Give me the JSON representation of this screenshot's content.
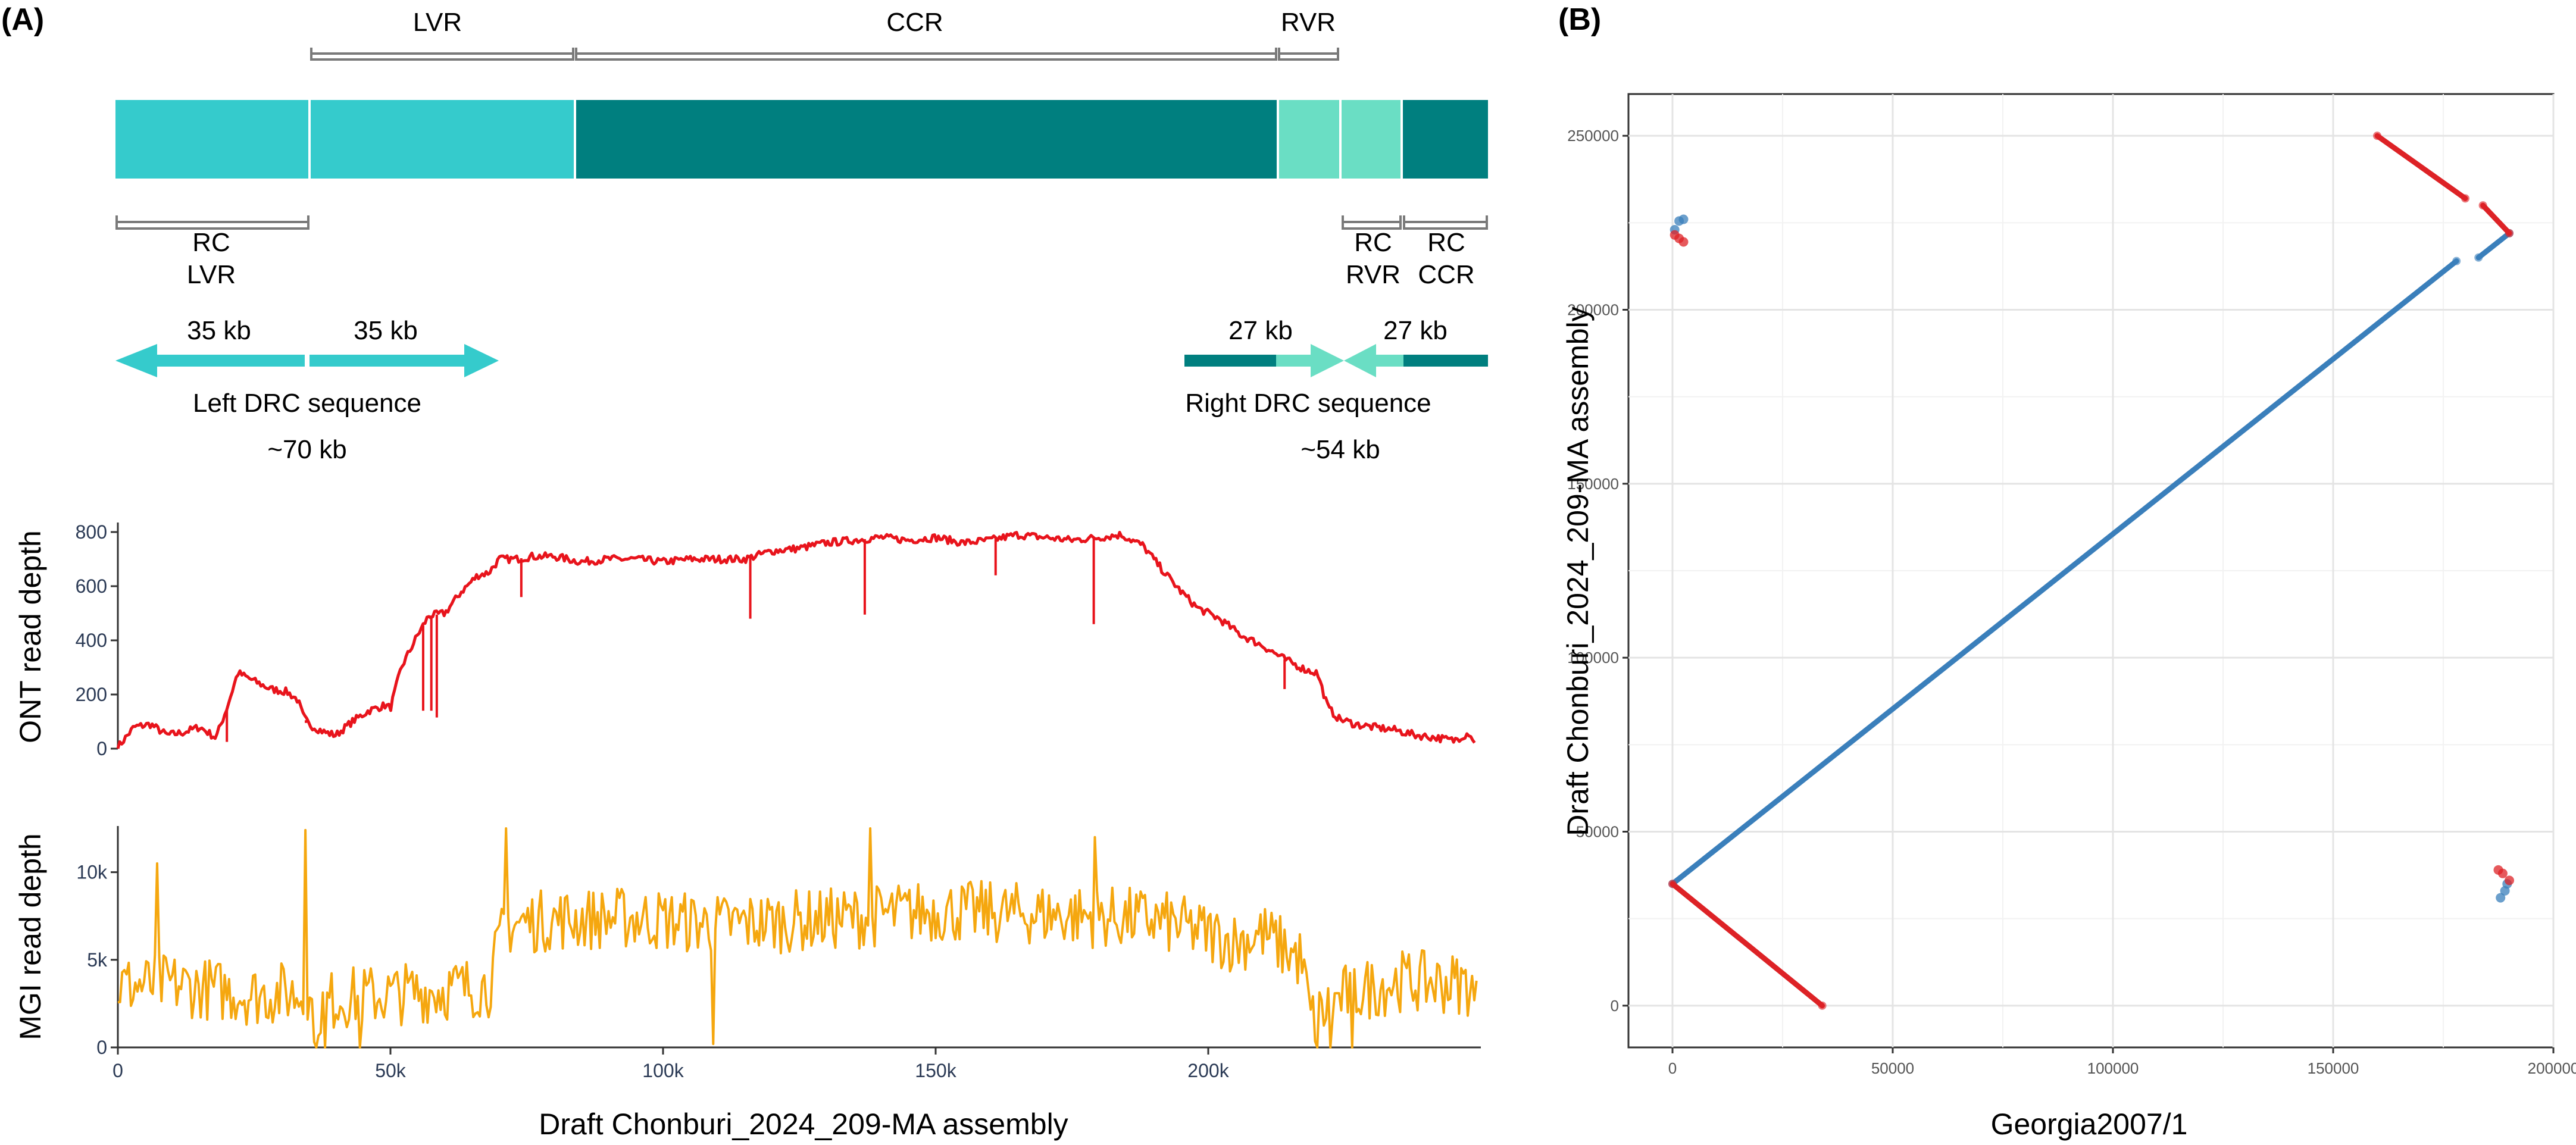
{
  "panels": {
    "a": "(A)",
    "b": "(B)"
  },
  "colors": {
    "light": "#35cbcc",
    "dark": "#007f7f",
    "mint": "#6adec4",
    "ont": "#e8141c",
    "mgi": "#f5a70f",
    "dotBlue": "#3a7fbb",
    "dotRed": "#dd2226"
  },
  "region_map": {
    "top_labels": {
      "lvr": "LVR",
      "ccr": "CCR",
      "rvr": "RVR"
    },
    "bottom_labels": {
      "rc_lvr": [
        "RC",
        "LVR"
      ],
      "rc_rvr": [
        "RC",
        "RVR"
      ],
      "rc_ccr": [
        "RC",
        "CCR"
      ]
    }
  },
  "drc": {
    "left": {
      "arrow_a": "35 kb",
      "arrow_b": "35 kb",
      "name": "Left DRC sequence",
      "size": "~70 kb"
    },
    "right": {
      "arrow_a": "27 kb",
      "arrow_b": "27 kb",
      "name": "Right DRC sequence",
      "size": "~54 kb"
    }
  },
  "chart_data": [
    {
      "type": "line",
      "title": "",
      "ylabel": "ONT read depth",
      "xlabel": "Draft Chonburi_2024_209-MA assembly",
      "xlim": [
        0,
        250000
      ],
      "ylim": [
        0,
        800
      ],
      "x_ticks": [
        0,
        50000,
        100000,
        150000,
        200000
      ],
      "x_tick_labels": [
        "0",
        "50k",
        "100k",
        "150k",
        "200k"
      ],
      "y_ticks": [
        0,
        200,
        400,
        600,
        800
      ],
      "y_tick_labels": [
        "0",
        "200",
        "400",
        "600",
        "800"
      ],
      "series": [
        {
          "name": "ONT",
          "x": [
            0,
            3000,
            6000,
            9000,
            12000,
            15000,
            18000,
            20000,
            22000,
            25000,
            28000,
            31000,
            33000,
            34000,
            35000,
            38000,
            40000,
            43000,
            46000,
            49000,
            50000,
            52000,
            55000,
            57000,
            60000,
            63000,
            66000,
            68000,
            70000,
            73000,
            76000,
            80000,
            85000,
            90000,
            95000,
            100000,
            105000,
            110000,
            115000,
            120000,
            125000,
            130000,
            135000,
            140000,
            145000,
            150000,
            155000,
            160000,
            165000,
            170000,
            175000,
            180000,
            184000,
            188000,
            192000,
            195000,
            198000,
            202000,
            206000,
            210000,
            214000,
            218000,
            220000,
            222000,
            224000,
            227000,
            230000,
            234000,
            238000,
            242000,
            245000,
            248000,
            249000
          ],
          "values": [
            5,
            80,
            90,
            50,
            60,
            80,
            40,
            150,
            280,
            250,
            220,
            210,
            180,
            120,
            90,
            60,
            50,
            100,
            140,
            160,
            150,
            300,
            420,
            490,
            500,
            580,
            640,
            650,
            700,
            700,
            710,
            710,
            690,
            700,
            700,
            690,
            700,
            700,
            700,
            730,
            740,
            760,
            770,
            780,
            770,
            780,
            760,
            770,
            790,
            780,
            770,
            780,
            790,
            750,
            650,
            580,
            520,
            480,
            420,
            380,
            330,
            290,
            280,
            150,
            110,
            90,
            80,
            70,
            50,
            40,
            30,
            60,
            10
          ],
          "spikes": [
            [
              20000,
              25
            ],
            [
              34500,
              95
            ],
            [
              56000,
              140
            ],
            [
              57500,
              140
            ],
            [
              58500,
              115
            ],
            [
              74000,
              560
            ],
            [
              116000,
              480
            ],
            [
              137000,
              495
            ],
            [
              161000,
              640
            ],
            [
              179000,
              460
            ],
            [
              214000,
              220
            ]
          ]
        }
      ]
    },
    {
      "type": "line",
      "title": "",
      "ylabel": "MGI read depth",
      "xlabel": "Draft Chonburi_2024_209-MA assembly",
      "xlim": [
        0,
        250000
      ],
      "ylim": [
        0,
        12500
      ],
      "x_ticks": [
        0,
        50000,
        100000,
        150000,
        200000
      ],
      "x_tick_labels": [
        "0",
        "50k",
        "100k",
        "150k",
        "200k"
      ],
      "y_ticks": [
        0,
        5000,
        10000
      ],
      "y_tick_labels": [
        "0",
        "5k",
        "10k"
      ],
      "series": [
        {
          "name": "MGI",
          "level_x": [
            0,
            10000,
            20000,
            25000,
            30000,
            34000,
            36000,
            40000,
            50000,
            60000,
            68000,
            71000,
            80000,
            95000,
            110000,
            130000,
            150000,
            170000,
            190000,
            200000,
            205000,
            210000,
            217000,
            219000,
            225000,
            235000,
            248000,
            249500
          ],
          "level_y": [
            3500,
            3600,
            3200,
            3000,
            3100,
            3000,
            2000,
            2800,
            3000,
            3300,
            3500,
            7000,
            7300,
            7400,
            7000,
            7300,
            7800,
            7600,
            7300,
            6500,
            6000,
            6500,
            5000,
            1500,
            3000,
            3800,
            3600,
            2000
          ],
          "noise_amplitude": 1800,
          "spikes": [
            [
              7000,
              10500
            ],
            [
              34500,
              12400
            ],
            [
              71000,
              12600
            ],
            [
              109000,
              200
            ],
            [
              138000,
              12500
            ],
            [
              179000,
              12000
            ],
            [
              36500,
              0
            ],
            [
              38000,
              0
            ],
            [
              44500,
              0
            ],
            [
              220000,
              0
            ],
            [
              222500,
              0
            ],
            [
              226500,
              0
            ]
          ]
        }
      ]
    },
    {
      "type": "scatter",
      "title": "",
      "xlabel": "Georgia2007/1",
      "ylabel": "Draft Chonburi_2024_209-MA assembly",
      "xlim": [
        -10000,
        200000
      ],
      "ylim": [
        -12000,
        262000
      ],
      "x_ticks": [
        0,
        50000,
        100000,
        150000,
        200000
      ],
      "x_tick_labels": [
        "0",
        "50000",
        "100000",
        "150000",
        "200000"
      ],
      "y_ticks": [
        0,
        50000,
        100000,
        150000,
        200000,
        250000
      ],
      "y_tick_labels": [
        "0",
        "50000",
        "100000",
        "150000",
        "200000",
        "250000"
      ],
      "series": [
        {
          "name": "forward",
          "color": "#3a7fbb",
          "segments": [
            [
              [
                0,
                35000
              ],
              [
                178000,
                214000
              ]
            ],
            [
              [
                183000,
                215000
              ],
              [
                190000,
                222000
              ]
            ]
          ],
          "points": [
            [
              500,
              223000
            ],
            [
              1500,
              225500
            ],
            [
              2500,
              226000
            ],
            [
              188000,
              31000
            ],
            [
              189000,
              33000
            ],
            [
              189500,
              35000
            ]
          ]
        },
        {
          "name": "reverse",
          "color": "#dd2226",
          "segments": [
            [
              [
                0,
                35000
              ],
              [
                34000,
                0
              ]
            ],
            [
              [
                160000,
                250000
              ],
              [
                180000,
                232000
              ]
            ],
            [
              [
                184000,
                230000
              ],
              [
                190000,
                222000
              ]
            ]
          ],
          "points": [
            [
              500,
              221500
            ],
            [
              1500,
              220500
            ],
            [
              2500,
              219500
            ],
            [
              187500,
              39000
            ],
            [
              188500,
              38000
            ],
            [
              190000,
              36000
            ]
          ]
        }
      ]
    }
  ]
}
